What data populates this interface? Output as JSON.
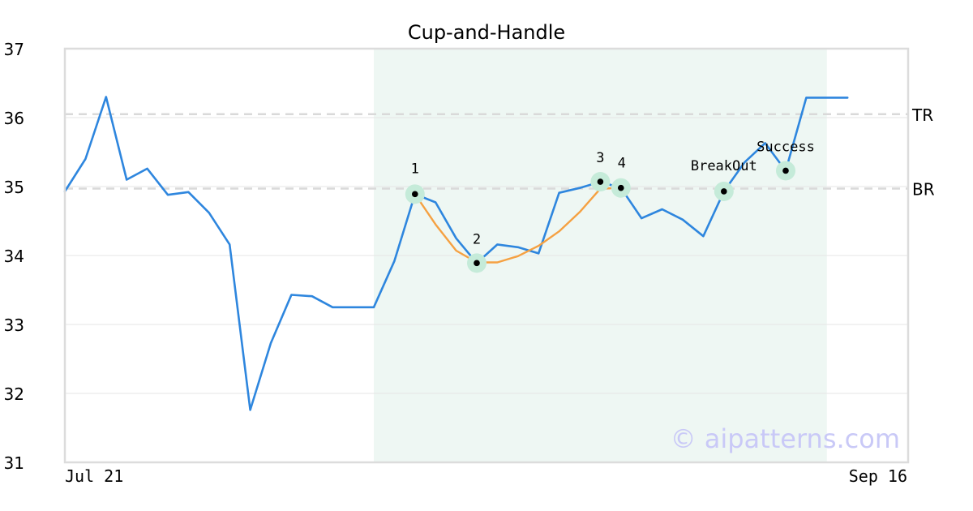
{
  "chart_data": {
    "type": "line",
    "title": "Cup-and-Handle",
    "ylim": [
      31,
      37
    ],
    "yticks": [
      "31",
      "32",
      "33",
      "34",
      "35",
      "36",
      "37"
    ],
    "xticks": [
      "Jul 21",
      "Sep 16"
    ],
    "grid": true,
    "series": [
      {
        "color": "#2e86de",
        "x": [
          0,
          1,
          2,
          3,
          4,
          5,
          6,
          7,
          8,
          9,
          10,
          11,
          12,
          13,
          14,
          15,
          16,
          17,
          18,
          19,
          20,
          21,
          22,
          23,
          24,
          25,
          26,
          27,
          28,
          29,
          30,
          31,
          32,
          33,
          34,
          35,
          36,
          37,
          38
        ],
        "values": [
          34.93,
          35.4,
          36.3,
          35.1,
          35.26,
          34.88,
          34.92,
          34.62,
          34.16,
          31.76,
          32.73,
          33.43,
          33.41,
          33.25,
          33.25,
          33.25,
          33.92,
          34.89,
          34.77,
          34.25,
          33.89,
          34.16,
          34.12,
          34.03,
          34.91,
          34.98,
          35.07,
          34.98,
          34.54,
          34.67,
          34.52,
          34.28,
          34.93,
          35.35,
          35.63,
          35.23,
          36.29,
          36.29,
          36.29
        ]
      },
      {
        "color": "#f5a142",
        "x": [
          17,
          18,
          19,
          20,
          21,
          22,
          23,
          24,
          25,
          26,
          27
        ],
        "values": [
          34.89,
          34.45,
          34.07,
          33.9,
          33.9,
          33.99,
          34.14,
          34.35,
          34.63,
          34.97,
          34.98
        ]
      }
    ],
    "levels": [
      {
        "label": "TR",
        "value": 36.05,
        "color": "#d9d9d9"
      },
      {
        "label": "BR",
        "value": 34.97,
        "color": "#d9d9d9"
      }
    ],
    "shaded_region": {
      "x_start": 15,
      "x_end": 37,
      "color": "#eef7f3"
    },
    "markers": [
      {
        "label": "1",
        "x": 17,
        "y": 34.89
      },
      {
        "label": "2",
        "x": 20,
        "y": 33.89
      },
      {
        "label": "3",
        "x": 26,
        "y": 35.07
      },
      {
        "label": "4",
        "x": 27,
        "y": 34.98
      },
      {
        "label": "BreakOut",
        "x": 32,
        "y": 34.93
      },
      {
        "label": "Success",
        "x": 35,
        "y": 35.23
      }
    ],
    "watermark": "© aipatterns.com"
  }
}
